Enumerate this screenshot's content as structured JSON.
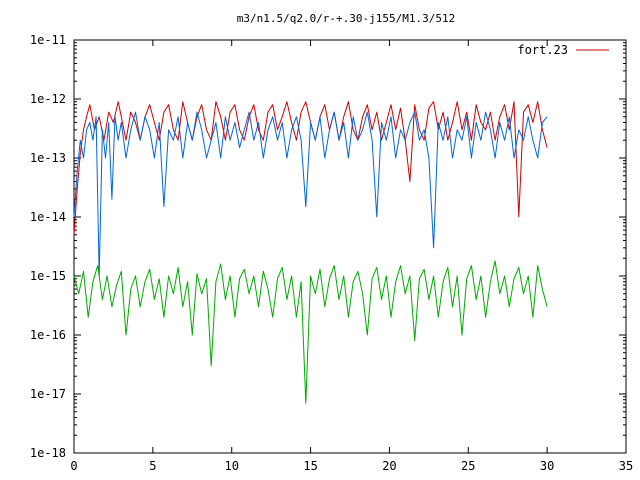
{
  "chart_data": {
    "type": "line",
    "title": "m3/n1.5/q2.0/r-+.30-j155/M1.3/512",
    "xlabel": "",
    "ylabel": "",
    "xlim": [
      0,
      35
    ],
    "ylim": [
      1e-18,
      1e-11
    ],
    "yscale": "log",
    "grid": false,
    "legend_position": "top-right",
    "x_ticks": [
      0,
      5,
      10,
      15,
      20,
      25,
      30,
      35
    ],
    "x_tick_labels": [
      "0",
      "5",
      "10",
      "15",
      "20",
      "25",
      "30",
      "35"
    ],
    "y_ticks": [
      1e-18,
      1e-17,
      1e-16,
      1e-15,
      1e-14,
      1e-13,
      1e-12,
      1e-11
    ],
    "y_tick_labels": [
      "1e-18",
      "1e-17",
      "1e-16",
      "1e-15",
      "1e-14",
      "1e-13",
      "1e-12",
      "1e-11"
    ],
    "series": [
      {
        "name": "fort.23",
        "color": "#cc0000",
        "x": [
          0.0,
          0.2,
          0.4,
          0.6,
          0.8,
          1.0,
          1.3,
          1.6,
          1.9,
          2.2,
          2.5,
          2.8,
          3.0,
          3.3,
          3.6,
          3.9,
          4.2,
          4.5,
          4.8,
          5.1,
          5.4,
          5.7,
          6.0,
          6.3,
          6.6,
          6.9,
          7.2,
          7.5,
          7.8,
          8.1,
          8.4,
          8.7,
          9.0,
          9.3,
          9.6,
          9.9,
          10.2,
          10.5,
          10.8,
          11.1,
          11.4,
          11.7,
          12.0,
          12.3,
          12.6,
          12.9,
          13.2,
          13.5,
          13.8,
          14.1,
          14.4,
          14.7,
          15.0,
          15.3,
          15.6,
          15.9,
          16.2,
          16.5,
          16.8,
          17.1,
          17.4,
          17.7,
          18.0,
          18.3,
          18.6,
          18.9,
          19.2,
          19.5,
          19.8,
          20.1,
          20.4,
          20.7,
          21.0,
          21.3,
          21.6,
          21.9,
          22.2,
          22.5,
          22.8,
          23.1,
          23.4,
          23.7,
          24.0,
          24.3,
          24.6,
          24.9,
          25.2,
          25.5,
          25.8,
          26.1,
          26.4,
          26.7,
          27.0,
          27.3,
          27.6,
          27.9,
          28.2,
          28.5,
          28.8,
          29.1,
          29.4,
          29.7,
          30.0
        ],
        "y": [
          5e-15,
          3e-14,
          1.2e-13,
          3e-13,
          5e-13,
          8e-13,
          3e-13,
          5e-13,
          2e-13,
          6e-13,
          4e-13,
          9e-13,
          5e-13,
          2e-13,
          6e-13,
          4e-13,
          2e-13,
          5e-13,
          8e-13,
          4e-13,
          2e-13,
          6e-13,
          8e-13,
          3e-13,
          2e-13,
          9e-13,
          4e-13,
          2e-13,
          5e-13,
          8e-13,
          3e-13,
          2e-13,
          9e-13,
          5e-13,
          2e-13,
          6e-13,
          8e-13,
          3e-13,
          2e-13,
          5e-13,
          8e-13,
          3e-13,
          2e-13,
          6e-13,
          8e-13,
          3e-13,
          5e-13,
          9e-13,
          4e-13,
          2e-13,
          6e-13,
          9e-13,
          4e-13,
          2e-13,
          5e-13,
          8e-13,
          3e-13,
          6e-13,
          2e-13,
          5e-13,
          9e-13,
          3e-13,
          2e-13,
          5e-13,
          8e-13,
          3e-13,
          6e-13,
          2e-13,
          4e-13,
          8e-13,
          3e-13,
          7e-13,
          2e-13,
          4e-14,
          8e-13,
          3e-13,
          2e-13,
          7e-13,
          9e-13,
          3e-13,
          6e-13,
          2e-13,
          4e-13,
          9e-13,
          3e-13,
          6e-13,
          2e-13,
          8e-13,
          4e-13,
          3e-13,
          6e-13,
          2e-13,
          5e-13,
          8e-13,
          3e-13,
          9e-13,
          1e-14,
          6e-13,
          8e-13,
          4e-13,
          9e-13,
          3e-13,
          1.5e-13
        ]
      },
      {
        "name": "",
        "color": "#0066dd",
        "x": [
          0.0,
          0.2,
          0.4,
          0.6,
          0.8,
          1.0,
          1.2,
          1.4,
          1.6,
          1.8,
          2.0,
          2.2,
          2.4,
          2.6,
          2.8,
          3.0,
          3.3,
          3.6,
          3.9,
          4.2,
          4.5,
          4.8,
          5.1,
          5.4,
          5.7,
          6.0,
          6.3,
          6.6,
          6.9,
          7.2,
          7.5,
          7.8,
          8.1,
          8.4,
          8.7,
          9.0,
          9.3,
          9.6,
          9.9,
          10.2,
          10.5,
          10.8,
          11.1,
          11.4,
          11.7,
          12.0,
          12.3,
          12.6,
          12.9,
          13.2,
          13.5,
          13.8,
          14.1,
          14.4,
          14.7,
          15.0,
          15.3,
          15.6,
          15.9,
          16.2,
          16.5,
          16.8,
          17.1,
          17.4,
          17.7,
          18.0,
          18.3,
          18.6,
          18.9,
          19.2,
          19.5,
          19.8,
          20.1,
          20.4,
          20.7,
          21.0,
          21.3,
          21.6,
          21.9,
          22.2,
          22.5,
          22.8,
          23.1,
          23.4,
          23.7,
          24.0,
          24.3,
          24.6,
          24.9,
          25.2,
          25.5,
          25.8,
          26.1,
          26.4,
          26.7,
          27.0,
          27.3,
          27.6,
          27.9,
          28.2,
          28.5,
          28.8,
          29.1,
          29.4,
          29.7,
          30.0
        ],
        "y": [
          1e-14,
          6e-14,
          2e-13,
          1e-13,
          3e-13,
          4e-13,
          2e-13,
          5e-13,
          1e-15,
          3e-13,
          1e-13,
          4e-13,
          2e-14,
          5e-13,
          2e-13,
          4e-13,
          1e-13,
          3e-13,
          6e-13,
          2e-13,
          5e-13,
          3e-13,
          1e-13,
          4e-13,
          1.5e-14,
          3e-13,
          2e-13,
          5e-13,
          1e-13,
          4e-13,
          2e-13,
          6e-13,
          3e-13,
          1e-13,
          2e-13,
          4e-13,
          1e-13,
          5e-13,
          2e-13,
          4e-13,
          1.5e-13,
          3e-13,
          6e-13,
          2e-13,
          4e-13,
          1e-13,
          3e-13,
          5e-13,
          2e-13,
          4e-13,
          1e-13,
          3e-13,
          5e-13,
          2e-13,
          1.5e-14,
          4e-13,
          2e-13,
          5e-13,
          1e-13,
          3e-13,
          6e-13,
          2e-13,
          4e-13,
          1e-13,
          5e-13,
          2e-13,
          3e-13,
          6e-13,
          2e-13,
          1e-14,
          4e-13,
          2e-13,
          5e-13,
          1e-13,
          3e-13,
          2e-13,
          4e-13,
          6e-13,
          2e-13,
          3e-13,
          1e-13,
          3e-15,
          4e-13,
          2e-13,
          5e-13,
          1e-13,
          3e-13,
          2e-13,
          5e-13,
          1e-13,
          4e-13,
          2e-13,
          6e-13,
          3e-13,
          1e-13,
          4e-13,
          2e-13,
          5e-13,
          1e-13,
          3e-13,
          2e-13,
          5e-13,
          2e-13,
          1e-13,
          4e-13,
          5e-13
        ]
      },
      {
        "name": "",
        "color": "#00aa00",
        "x": [
          0.0,
          0.3,
          0.6,
          0.9,
          1.2,
          1.5,
          1.8,
          2.1,
          2.4,
          2.7,
          3.0,
          3.3,
          3.6,
          3.9,
          4.2,
          4.5,
          4.8,
          5.1,
          5.4,
          5.7,
          6.0,
          6.3,
          6.6,
          6.9,
          7.2,
          7.5,
          7.8,
          8.1,
          8.4,
          8.7,
          9.0,
          9.3,
          9.6,
          9.9,
          10.2,
          10.5,
          10.8,
          11.1,
          11.4,
          11.7,
          12.0,
          12.3,
          12.6,
          12.9,
          13.2,
          13.5,
          13.8,
          14.1,
          14.4,
          14.7,
          15.0,
          15.3,
          15.6,
          15.9,
          16.2,
          16.5,
          16.8,
          17.1,
          17.4,
          17.7,
          18.0,
          18.3,
          18.6,
          18.9,
          19.2,
          19.5,
          19.8,
          20.1,
          20.4,
          20.7,
          21.0,
          21.3,
          21.6,
          21.9,
          22.2,
          22.5,
          22.8,
          23.1,
          23.4,
          23.7,
          24.0,
          24.3,
          24.6,
          24.9,
          25.2,
          25.5,
          25.8,
          26.1,
          26.4,
          26.7,
          27.0,
          27.3,
          27.6,
          27.9,
          28.2,
          28.5,
          28.8,
          29.1,
          29.4,
          29.7,
          30.0
        ],
        "y": [
          1e-15,
          5e-16,
          1.2e-15,
          2e-16,
          8e-16,
          1.5e-15,
          4e-16,
          1e-15,
          3e-16,
          7e-16,
          1.2e-15,
          1e-16,
          6e-16,
          1e-15,
          3e-16,
          8e-16,
          1.3e-15,
          4e-16,
          9e-16,
          2e-16,
          1e-15,
          5e-16,
          1.4e-15,
          3e-16,
          8e-16,
          1e-16,
          1.1e-15,
          5e-16,
          9e-16,
          3e-17,
          8e-16,
          1.6e-15,
          4e-16,
          1e-15,
          2e-16,
          9e-16,
          1.3e-15,
          5e-16,
          1e-15,
          3e-16,
          1.2e-15,
          6e-16,
          2e-16,
          9e-16,
          1.4e-15,
          4e-16,
          1e-15,
          2e-16,
          8e-16,
          7e-18,
          1e-15,
          5e-16,
          1.3e-15,
          3e-16,
          9e-16,
          1.5e-15,
          4e-16,
          1e-15,
          2e-16,
          8e-16,
          1.2e-15,
          5e-16,
          1e-16,
          9e-16,
          1.4e-15,
          4e-16,
          1e-15,
          2e-16,
          8e-16,
          1.5e-15,
          5e-16,
          1e-15,
          8e-17,
          9e-16,
          1.3e-15,
          4e-16,
          1e-15,
          2e-16,
          8e-16,
          1.4e-15,
          3e-16,
          1e-15,
          1e-16,
          9e-16,
          1.5e-15,
          4e-16,
          1e-15,
          2e-16,
          8e-16,
          1.8e-15,
          5e-16,
          1e-15,
          3e-16,
          9e-16,
          1.4e-15,
          5e-16,
          1e-15,
          2e-16,
          1.5e-15,
          6e-16,
          3e-16
        ]
      }
    ]
  }
}
